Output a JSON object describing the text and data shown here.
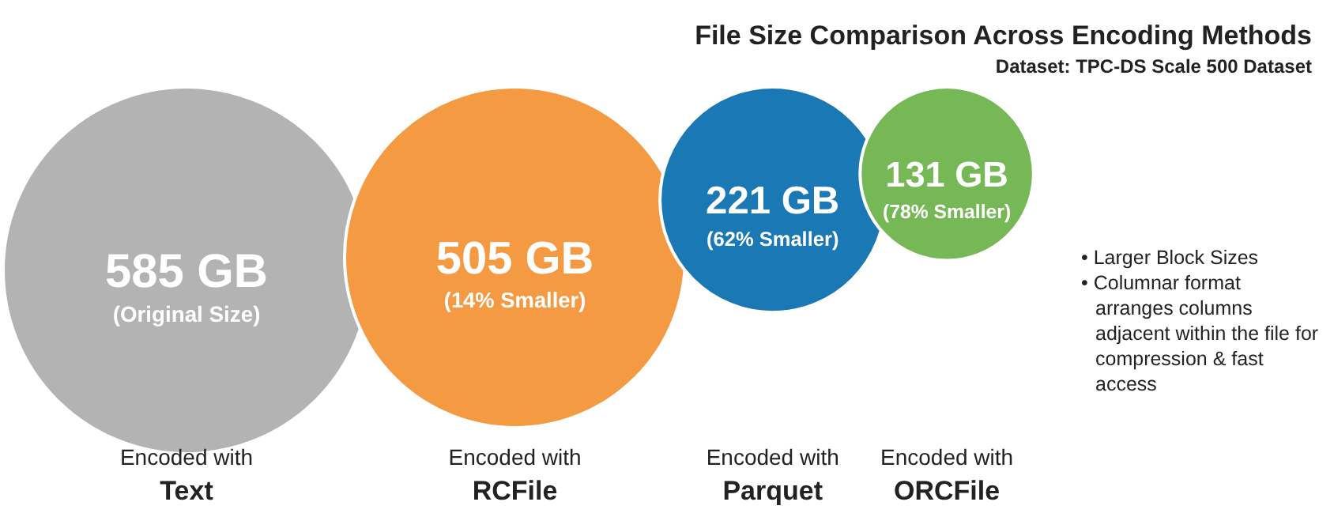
{
  "chart_data": {
    "type": "other",
    "title": "File Size Comparison Across Encoding Methods",
    "subtitle": "Dataset: TPC-DS Scale 500 Dataset",
    "xlabel": "Encoded with",
    "categories": [
      "Text",
      "RCFile",
      "Parquet",
      "ORCFile"
    ],
    "values": [
      585,
      505,
      221,
      131
    ],
    "colors": [
      "#b3b3b3",
      "#f39a43",
      "#1a78b4",
      "#77b856"
    ],
    "value_labels": [
      "585 GB",
      "505 GB",
      "221 GB",
      "131 GB"
    ],
    "annotations": [
      {
        "text": "(Original Size)",
        "x": "Text"
      },
      {
        "text": "(14% Smaller)",
        "x": "RCFile"
      },
      {
        "text": "(62% Smaller)",
        "x": "Parquet"
      },
      {
        "text": "(78% Smaller)",
        "x": "ORCFile"
      },
      "• Larger Block Sizes",
      "• Columnar format arranges columns adjacent within the file for compression & fast access"
    ]
  }
}
